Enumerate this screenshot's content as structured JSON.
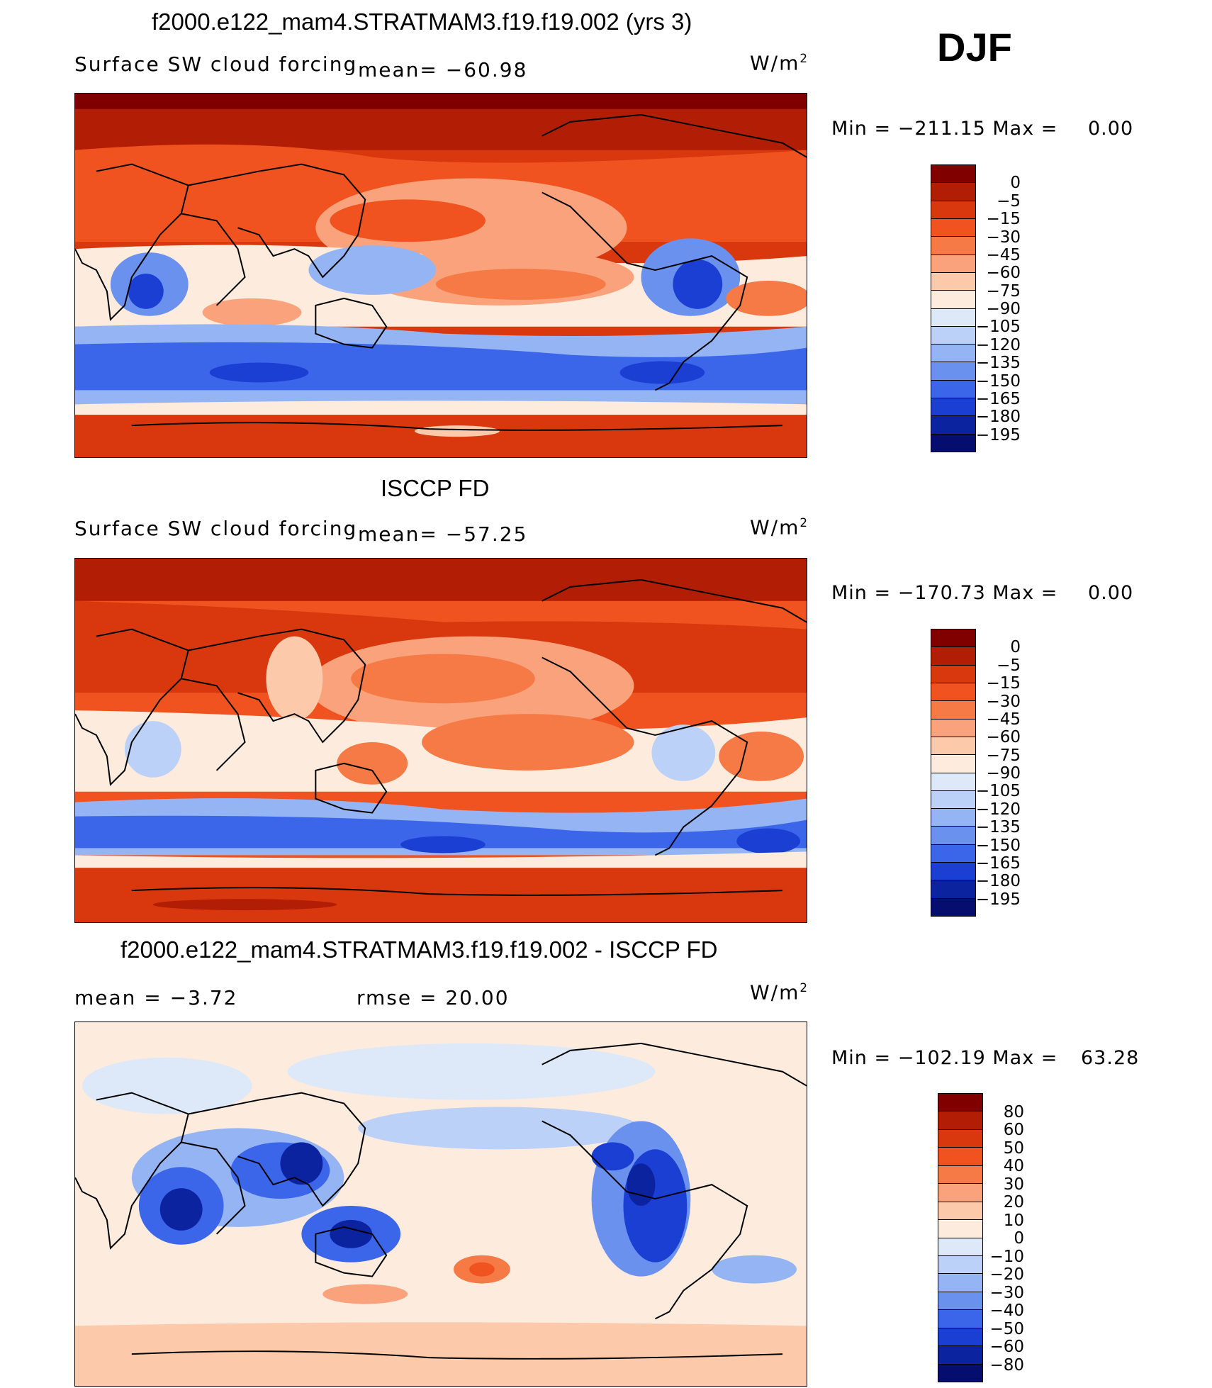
{
  "season": "DJF",
  "units_prefix": "W/m",
  "units_exp": "2",
  "panels": [
    {
      "title": "f2000.e122_mam4.STRATMAM3.f19.f19.002 (yrs 3)",
      "left_label": "Surface  SW  cloud  forcing",
      "mid_label": "mean=  −60.98",
      "min_label": "Min  =  −211.15  Max  =",
      "max_value": "0.00",
      "legend": [
        "0",
        "−5",
        "−15",
        "−30",
        "−45",
        "−60",
        "−75",
        "−90",
        "−105",
        "−120",
        "−135",
        "−150",
        "−165",
        "−180",
        "−195"
      ]
    },
    {
      "title": "ISCCP FD",
      "left_label": "Surface  SW  cloud  forcing",
      "mid_label": "mean=  −57.25",
      "min_label": "Min  =  −170.73  Max  =",
      "max_value": "0.00",
      "legend": [
        "0",
        "−5",
        "−15",
        "−30",
        "−45",
        "−60",
        "−75",
        "−90",
        "−105",
        "−120",
        "−135",
        "−150",
        "−165",
        "−180",
        "−195"
      ]
    },
    {
      "title": "f2000.e122_mam4.STRATMAM3.f19.f19.002 - ISCCP FD",
      "left_label": "mean  =     −3.72",
      "mid_label": "rmse  =    20.00",
      "min_label": "Min  =  −102.19  Max  =",
      "max_value": "63.28",
      "legend": [
        "80",
        "60",
        "50",
        "40",
        "30",
        "20",
        "10",
        "0",
        "−10",
        "−20",
        "−30",
        "−40",
        "−50",
        "−60",
        "−80"
      ]
    }
  ],
  "colors": {
    "forcing_scale": [
      "#800000",
      "#b21e05",
      "#d9380e",
      "#f0531f",
      "#f57a45",
      "#f9a27c",
      "#fcc9ab",
      "#fdebdd",
      "#dde8f8",
      "#bcd1f7",
      "#95b4f3",
      "#6b91ef",
      "#3b66ea",
      "#1a3fd2",
      "#0c23a0",
      "#050e6e"
    ],
    "diff_scale": [
      "#800000",
      "#b21e05",
      "#d9380e",
      "#f0531f",
      "#f57a45",
      "#f9a27c",
      "#fcc9ab",
      "#fdebdd",
      "#dde8f8",
      "#bcd1f7",
      "#95b4f3",
      "#6b91ef",
      "#3b66ea",
      "#1a3fd2",
      "#0c23a0",
      "#050e6e"
    ]
  }
}
